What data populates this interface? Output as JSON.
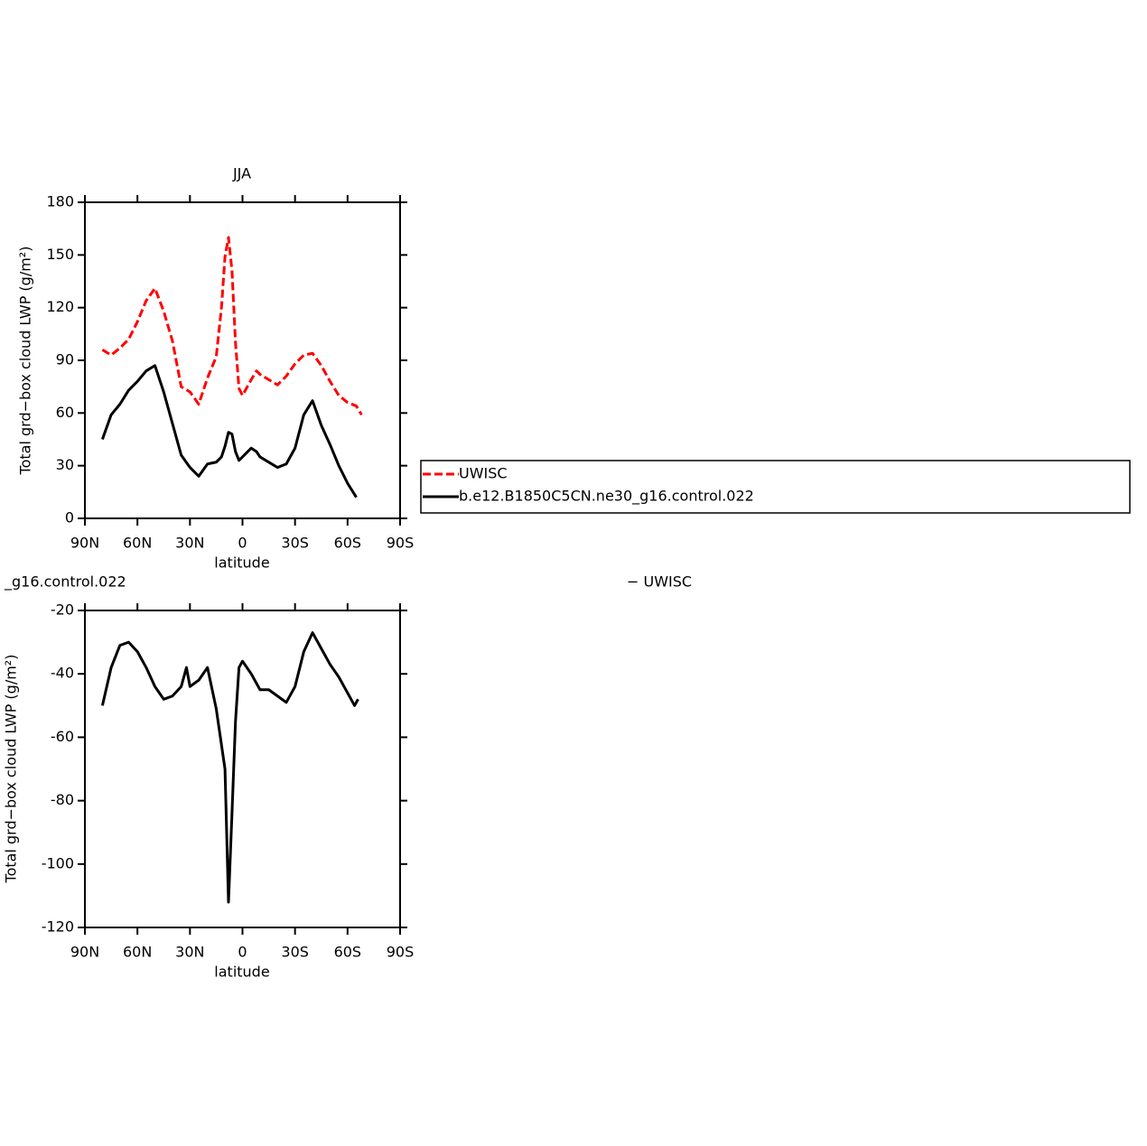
{
  "chart_data": [
    {
      "type": "line",
      "title": "JJA",
      "xlabel": "latitude",
      "ylabel": "Total grd−box cloud LWP (g/m²)",
      "x": [
        80,
        75,
        70,
        65,
        60,
        55,
        50,
        45,
        40,
        35,
        30,
        25,
        20,
        15,
        12,
        10,
        8,
        6,
        4,
        2,
        0,
        -5,
        -8,
        -10,
        -15,
        -20,
        -25,
        -30,
        -35,
        -40,
        -45,
        -50,
        -55,
        -60,
        -65,
        -68
      ],
      "series": [
        {
          "name": "UWISC",
          "color": "#ff0000",
          "dash": true,
          "values": [
            96,
            93,
            97,
            102,
            112,
            124,
            131,
            118,
            101,
            75,
            72,
            65,
            80,
            92,
            120,
            149,
            160,
            141,
            100,
            74,
            70,
            79,
            84,
            82,
            79,
            76,
            81,
            88,
            93,
            94,
            87,
            78,
            70,
            66,
            64,
            59
          ]
        },
        {
          "name": "b.e12.B1850C5CN.ne30_g16.control.022",
          "color": "#000000",
          "dash": false,
          "values": [
            45,
            59,
            65,
            73,
            78,
            84,
            87,
            72,
            54,
            36,
            29,
            24,
            31,
            32,
            35,
            41,
            49,
            48,
            38,
            33,
            35,
            40,
            38,
            35,
            32,
            29,
            31,
            40,
            59,
            67,
            53,
            42,
            30,
            20,
            12,
            null
          ]
        }
      ],
      "xlim": [
        90,
        -90
      ],
      "xticks": [
        {
          "value": 90,
          "label": "90N"
        },
        {
          "value": 60,
          "label": "60N"
        },
        {
          "value": 30,
          "label": "30N"
        },
        0,
        {
          "value": -30,
          "label": "30S"
        },
        {
          "value": -60,
          "label": "60S"
        },
        {
          "value": -90,
          "label": "90S"
        }
      ],
      "ylim": [
        0,
        180
      ],
      "yticks": [
        0,
        30,
        60,
        90,
        120,
        150,
        180
      ],
      "grid": false,
      "legend": "right"
    },
    {
      "type": "line",
      "left_title": "_g16.control.022",
      "right_title": "− UWISC",
      "xlabel": "latitude",
      "ylabel": "Total grd−box cloud LWP (g/m²)",
      "x": [
        80,
        75,
        70,
        65,
        60,
        55,
        50,
        45,
        40,
        35,
        32,
        30,
        25,
        20,
        15,
        10,
        8,
        6,
        4,
        2,
        0,
        -5,
        -10,
        -15,
        -20,
        -25,
        -30,
        -35,
        -40,
        -45,
        -50,
        -55,
        -60,
        -64,
        -66
      ],
      "series": [
        {
          "color": "#000000",
          "dash": false,
          "values": [
            -50,
            -38,
            -31,
            -30,
            -33,
            -38,
            -44,
            -48,
            -47,
            -44,
            -38,
            -44,
            -42,
            -38,
            -51,
            -70,
            -112,
            -84,
            -55,
            -38,
            -36,
            -40,
            -45,
            -45,
            -47,
            -49,
            -44,
            -33,
            -27,
            -32,
            -37,
            -41,
            -46,
            -50,
            -48
          ]
        }
      ],
      "xlim": [
        90,
        -90
      ],
      "xticks": [
        {
          "value": 90,
          "label": "90N"
        },
        {
          "value": 60,
          "label": "60N"
        },
        {
          "value": 30,
          "label": "30N"
        },
        0,
        {
          "value": -30,
          "label": "30S"
        },
        {
          "value": -60,
          "label": "60S"
        },
        {
          "value": -90,
          "label": "90S"
        }
      ],
      "ylim": [
        -120,
        -20
      ],
      "yticks": [
        -120,
        -100,
        -80,
        -60,
        -40,
        -20
      ],
      "grid": false
    }
  ]
}
